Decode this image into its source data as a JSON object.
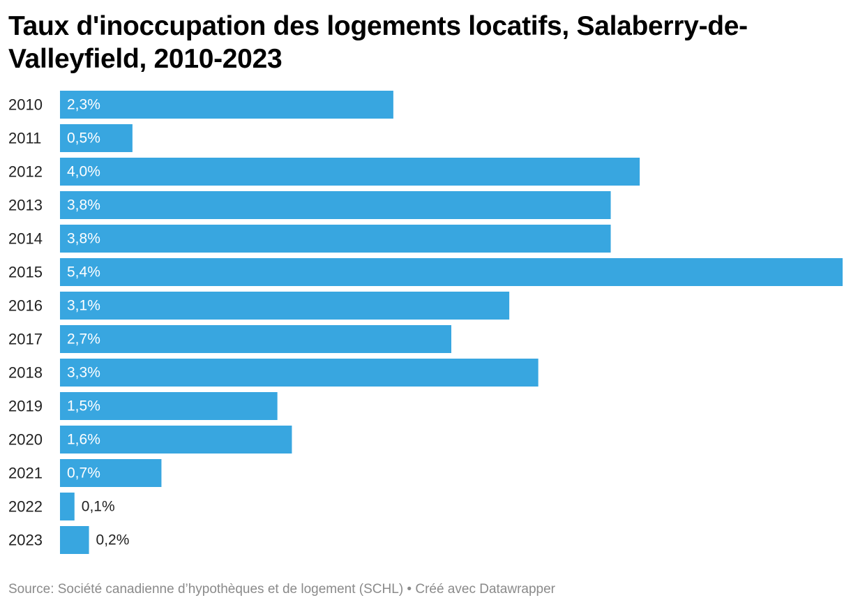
{
  "chart_data": {
    "type": "bar",
    "orientation": "horizontal",
    "title": "Taux d'inoccupation des logements locatifs, Salaberry-de-Valleyfield, 2010-2023",
    "categories": [
      "2010",
      "2011",
      "2012",
      "2013",
      "2014",
      "2015",
      "2016",
      "2017",
      "2018",
      "2019",
      "2020",
      "2021",
      "2022",
      "2023"
    ],
    "values": [
      2.3,
      0.5,
      4.0,
      3.8,
      3.8,
      5.4,
      3.1,
      2.7,
      3.3,
      1.5,
      1.6,
      0.7,
      0.1,
      0.2
    ],
    "value_labels": [
      "2,3%",
      "0,5%",
      "4,0%",
      "3,8%",
      "3,8%",
      "5,4%",
      "3,1%",
      "2,7%",
      "3,3%",
      "1,5%",
      "1,6%",
      "0,7%",
      "0,1%",
      "0,2%"
    ],
    "xlim": [
      0,
      5.4
    ],
    "grid": false,
    "bar_color": "#38a6e0"
  },
  "source": "Source: Société canadienne d’hypothèques et de logement (SCHL) • Créé avec Datawrapper"
}
